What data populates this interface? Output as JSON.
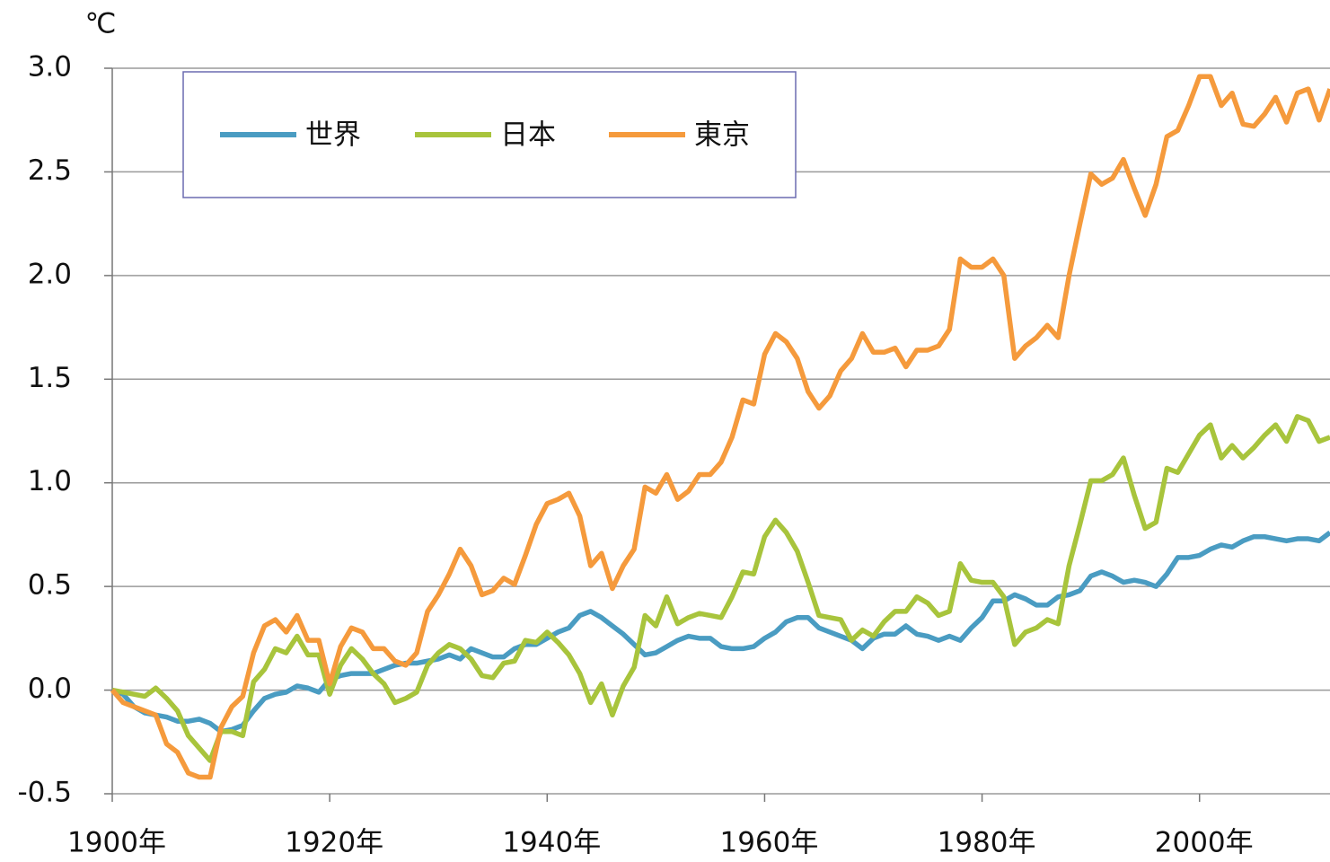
{
  "chart_data": {
    "type": "line",
    "y_unit": "℃",
    "x": [
      1900,
      1901,
      1902,
      1903,
      1904,
      1905,
      1906,
      1907,
      1908,
      1909,
      1910,
      1911,
      1912,
      1913,
      1914,
      1915,
      1916,
      1917,
      1918,
      1919,
      1920,
      1921,
      1922,
      1923,
      1924,
      1925,
      1926,
      1927,
      1928,
      1929,
      1930,
      1931,
      1932,
      1933,
      1934,
      1935,
      1936,
      1937,
      1938,
      1939,
      1940,
      1941,
      1942,
      1943,
      1944,
      1945,
      1946,
      1947,
      1948,
      1949,
      1950,
      1951,
      1952,
      1953,
      1954,
      1955,
      1956,
      1957,
      1958,
      1959,
      1960,
      1961,
      1962,
      1963,
      1964,
      1965,
      1966,
      1967,
      1968,
      1969,
      1970,
      1971,
      1972,
      1973,
      1974,
      1975,
      1976,
      1977,
      1978,
      1979,
      1980,
      1981,
      1982,
      1983,
      1984,
      1985,
      1986,
      1987,
      1988,
      1989,
      1990,
      1991,
      1992,
      1993,
      1994,
      1995,
      1996,
      1997,
      1998,
      1999,
      2000,
      2001,
      2002,
      2003,
      2004,
      2005,
      2006,
      2007,
      2008,
      2009,
      2010,
      2011,
      2012
    ],
    "series": [
      {
        "name": "世界",
        "color": "#4a9cc2",
        "values": [
          0,
          -0.02,
          -0.08,
          -0.11,
          -0.12,
          -0.13,
          -0.15,
          -0.15,
          -0.14,
          -0.16,
          -0.2,
          -0.19,
          -0.17,
          -0.1,
          -0.04,
          -0.02,
          -0.01,
          0.02,
          0.01,
          -0.01,
          0.05,
          0.07,
          0.08,
          0.08,
          0.08,
          0.1,
          0.12,
          0.13,
          0.13,
          0.14,
          0.15,
          0.17,
          0.15,
          0.2,
          0.18,
          0.16,
          0.16,
          0.2,
          0.22,
          0.22,
          0.25,
          0.28,
          0.3,
          0.36,
          0.38,
          0.35,
          0.31,
          0.27,
          0.22,
          0.17,
          0.18,
          0.21,
          0.24,
          0.26,
          0.25,
          0.25,
          0.21,
          0.2,
          0.2,
          0.21,
          0.25,
          0.28,
          0.33,
          0.35,
          0.35,
          0.3,
          0.28,
          0.26,
          0.24,
          0.2,
          0.25,
          0.27,
          0.27,
          0.31,
          0.27,
          0.26,
          0.24,
          0.26,
          0.24,
          0.3,
          0.35,
          0.43,
          0.43,
          0.46,
          0.44,
          0.41,
          0.41,
          0.45,
          0.46,
          0.48,
          0.55,
          0.57,
          0.55,
          0.52,
          0.53,
          0.52,
          0.5,
          0.56,
          0.64,
          0.64,
          0.65,
          0.68,
          0.7,
          0.69,
          0.72,
          0.74,
          0.74,
          0.73,
          0.72,
          0.73,
          0.73,
          0.72,
          0.76
        ]
      },
      {
        "name": "日本",
        "color": "#a8c43c",
        "values": [
          0,
          -0.01,
          -0.02,
          -0.03,
          0.01,
          -0.04,
          -0.1,
          -0.22,
          -0.28,
          -0.34,
          -0.2,
          -0.2,
          -0.22,
          0.04,
          0.1,
          0.2,
          0.18,
          0.26,
          0.17,
          0.17,
          -0.02,
          0.12,
          0.2,
          0.15,
          0.08,
          0.03,
          -0.06,
          -0.04,
          -0.01,
          0.12,
          0.18,
          0.22,
          0.2,
          0.15,
          0.07,
          0.06,
          0.13,
          0.14,
          0.24,
          0.23,
          0.28,
          0.23,
          0.17,
          0.08,
          -0.06,
          0.03,
          -0.12,
          0.02,
          0.11,
          0.36,
          0.31,
          0.45,
          0.32,
          0.35,
          0.37,
          0.36,
          0.35,
          0.45,
          0.57,
          0.56,
          0.74,
          0.82,
          0.76,
          0.67,
          0.52,
          0.36,
          0.35,
          0.34,
          0.24,
          0.29,
          0.26,
          0.33,
          0.38,
          0.38,
          0.45,
          0.42,
          0.36,
          0.38,
          0.61,
          0.53,
          0.52,
          0.52,
          0.45,
          0.22,
          0.28,
          0.3,
          0.34,
          0.32,
          0.6,
          0.8,
          1.01,
          1.01,
          1.04,
          1.12,
          0.94,
          0.78,
          0.81,
          1.07,
          1.05,
          1.14,
          1.23,
          1.28,
          1.12,
          1.18,
          1.12,
          1.17,
          1.23,
          1.28,
          1.2,
          1.32,
          1.3,
          1.2,
          1.22
        ]
      },
      {
        "name": "東京",
        "color": "#f59a3c",
        "values": [
          0,
          -0.06,
          -0.08,
          -0.1,
          -0.12,
          -0.26,
          -0.3,
          -0.4,
          -0.42,
          -0.42,
          -0.18,
          -0.08,
          -0.03,
          0.18,
          0.31,
          0.34,
          0.28,
          0.36,
          0.24,
          0.24,
          0.03,
          0.21,
          0.3,
          0.28,
          0.2,
          0.2,
          0.14,
          0.12,
          0.18,
          0.38,
          0.46,
          0.56,
          0.68,
          0.6,
          0.46,
          0.48,
          0.54,
          0.51,
          0.65,
          0.8,
          0.9,
          0.92,
          0.95,
          0.84,
          0.6,
          0.66,
          0.49,
          0.6,
          0.68,
          0.98,
          0.95,
          1.04,
          0.92,
          0.96,
          1.04,
          1.04,
          1.1,
          1.22,
          1.4,
          1.38,
          1.62,
          1.72,
          1.68,
          1.6,
          1.44,
          1.36,
          1.42,
          1.54,
          1.6,
          1.72,
          1.63,
          1.63,
          1.65,
          1.56,
          1.64,
          1.64,
          1.66,
          1.74,
          2.08,
          2.04,
          2.04,
          2.08,
          2.0,
          1.6,
          1.66,
          1.7,
          1.76,
          1.7,
          2.0,
          2.25,
          2.49,
          2.44,
          2.47,
          2.56,
          2.42,
          2.29,
          2.44,
          2.67,
          2.7,
          2.82,
          2.96,
          2.96,
          2.82,
          2.88,
          2.73,
          2.72,
          2.78,
          2.86,
          2.74,
          2.88,
          2.9,
          2.75,
          2.9
        ]
      }
    ],
    "xlim": [
      1900,
      2012
    ],
    "xticks": [
      {
        "value": 1900,
        "label": "1900年"
      },
      {
        "value": 1920,
        "label": "1920年"
      },
      {
        "value": 1940,
        "label": "1940年"
      },
      {
        "value": 1960,
        "label": "1960年"
      },
      {
        "value": 1980,
        "label": "1980年"
      },
      {
        "value": 2000,
        "label": "2000年"
      }
    ],
    "ylim": [
      -0.5,
      3
    ],
    "yticks": [
      -0.5,
      {
        "value": 0,
        "label": "0.0"
      },
      0.5,
      {
        "value": 1,
        "label": "1.0"
      },
      1.5,
      {
        "value": 2,
        "label": "2.0"
      },
      2.5,
      {
        "value": 3,
        "label": "3.0"
      }
    ],
    "grid": true,
    "legend": "top-left"
  }
}
